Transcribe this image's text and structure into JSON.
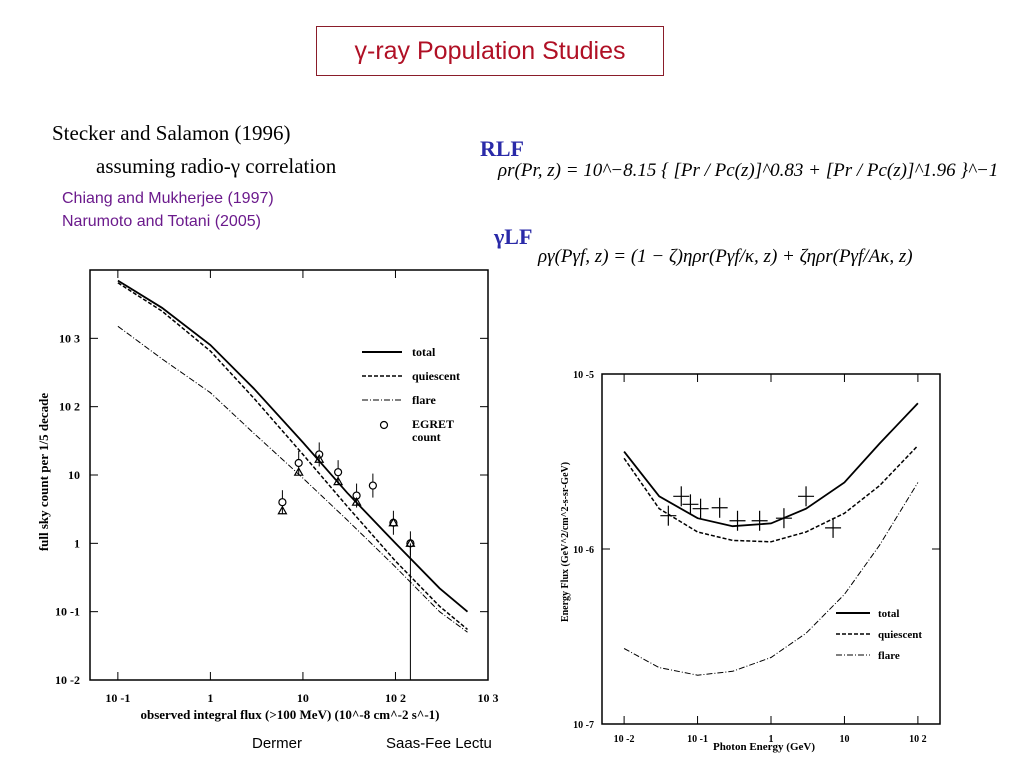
{
  "slide": {
    "title": "γ-ray Population Studies",
    "refs": {
      "line1": "Stecker and Salamon (1996)",
      "line2": "assuming radio-γ correlation",
      "line3": "Chiang and Mukherjee (1997)",
      "line4": "Narumoto and Totani (2005)"
    },
    "rlf_label": "RLF",
    "glf_label": "γLF",
    "rlf_eq": "ρr(Pr, z) = 10^−8.15 { [Pr / Pc(z)]^0.83 + [Pr / Pc(z)]^1.96 }^−1",
    "glf_eq": "ργ(Pγf, z) = (1 − ζ)ηρr(Pγf/κ, z) + ζηρr(Pγf/Aκ, z)",
    "footer_left": "Dermer",
    "footer_right": "Saas-Fee Lectu"
  },
  "chart_data": [
    {
      "type": "line",
      "xlabel": "observed integral flux (>100 MeV) (10^-8 cm^-2 s^-1)",
      "ylabel": "full sky count per 1/5 decade",
      "xscale": "log",
      "yscale": "log",
      "xlim": [
        0.05,
        1000
      ],
      "ylim": [
        0.01,
        10000
      ],
      "xticks": [
        "10 -1",
        "1",
        "10",
        "10 2",
        "10 3"
      ],
      "yticks": [
        "10 -2",
        "10 -1",
        "1",
        "10",
        "10 2",
        "10 3"
      ],
      "legend": [
        "total",
        "quiescent",
        "flare",
        "EGRET count"
      ],
      "legend_position": "right",
      "series": [
        {
          "name": "total",
          "style": "solid",
          "x": [
            0.1,
            0.3,
            1,
            3,
            10,
            30,
            100,
            300,
            600
          ],
          "y": [
            7000,
            2800,
            800,
            180,
            30,
            5.5,
            1.0,
            0.22,
            0.1
          ]
        },
        {
          "name": "quiescent",
          "style": "dashed",
          "x": [
            0.1,
            0.3,
            1,
            3,
            10,
            30,
            100,
            300,
            600
          ],
          "y": [
            6500,
            2500,
            650,
            130,
            20,
            3.5,
            0.55,
            0.12,
            0.055
          ]
        },
        {
          "name": "flare",
          "style": "dashdot",
          "x": [
            0.1,
            0.3,
            1,
            3,
            10,
            30,
            100,
            300,
            600
          ],
          "y": [
            1500,
            500,
            160,
            40,
            9,
            2.2,
            0.45,
            0.1,
            0.05
          ]
        }
      ],
      "points_circle": [
        [
          6,
          4
        ],
        [
          9,
          15
        ],
        [
          15,
          20
        ],
        [
          24,
          11
        ],
        [
          38,
          5
        ],
        [
          57,
          7
        ],
        [
          95,
          2
        ],
        [
          145,
          1
        ]
      ],
      "points_triangle": [
        [
          6,
          3
        ],
        [
          9,
          11
        ],
        [
          15,
          17
        ],
        [
          24,
          8
        ],
        [
          38,
          4
        ],
        [
          95,
          2
        ],
        [
          145,
          1
        ]
      ]
    },
    {
      "type": "line",
      "xlabel": "Photon Energy (GeV)",
      "ylabel": "Energy Flux (GeV^2/cm^2-s-sr-GeV)",
      "xscale": "log",
      "yscale": "log",
      "xlim": [
        0.005,
        200
      ],
      "ylim": [
        1e-07,
        1e-05
      ],
      "xticks": [
        "10 -2",
        "10 -1",
        "1",
        "10",
        "10 2"
      ],
      "yticks": [
        "10 -7",
        "10 -6",
        "10 -5"
      ],
      "legend": [
        "total",
        "quiescent",
        "flare"
      ],
      "legend_position": "bottom-right",
      "series": [
        {
          "name": "total",
          "style": "solid",
          "x": [
            0.01,
            0.03,
            0.1,
            0.3,
            1,
            3,
            10,
            30,
            100
          ],
          "y": [
            3.6e-06,
            2e-06,
            1.5e-06,
            1.35e-06,
            1.4e-06,
            1.7e-06,
            2.4e-06,
            4e-06,
            6.8e-06
          ]
        },
        {
          "name": "quiescent",
          "style": "dashed",
          "x": [
            0.01,
            0.03,
            0.1,
            0.3,
            1,
            3,
            10,
            30,
            100
          ],
          "y": [
            3.3e-06,
            1.7e-06,
            1.25e-06,
            1.12e-06,
            1.1e-06,
            1.25e-06,
            1.6e-06,
            2.3e-06,
            3.9e-06
          ]
        },
        {
          "name": "flare",
          "style": "dashdot",
          "x": [
            0.01,
            0.03,
            0.1,
            0.3,
            1,
            3,
            10,
            30,
            100
          ],
          "y": [
            2.7e-07,
            2.1e-07,
            1.9e-07,
            2e-07,
            2.4e-07,
            3.3e-07,
            5.5e-07,
            1.05e-06,
            2.4e-06
          ]
        }
      ],
      "points": [
        [
          0.04,
          1.55e-06
        ],
        [
          0.06,
          2e-06
        ],
        [
          0.08,
          1.8e-06
        ],
        [
          0.11,
          1.7e-06
        ],
        [
          0.2,
          1.72e-06
        ],
        [
          0.35,
          1.45e-06
        ],
        [
          0.7,
          1.45e-06
        ],
        [
          1.5,
          1.5e-06
        ],
        [
          3.0,
          2e-06
        ],
        [
          7.0,
          1.32e-06
        ]
      ]
    }
  ]
}
